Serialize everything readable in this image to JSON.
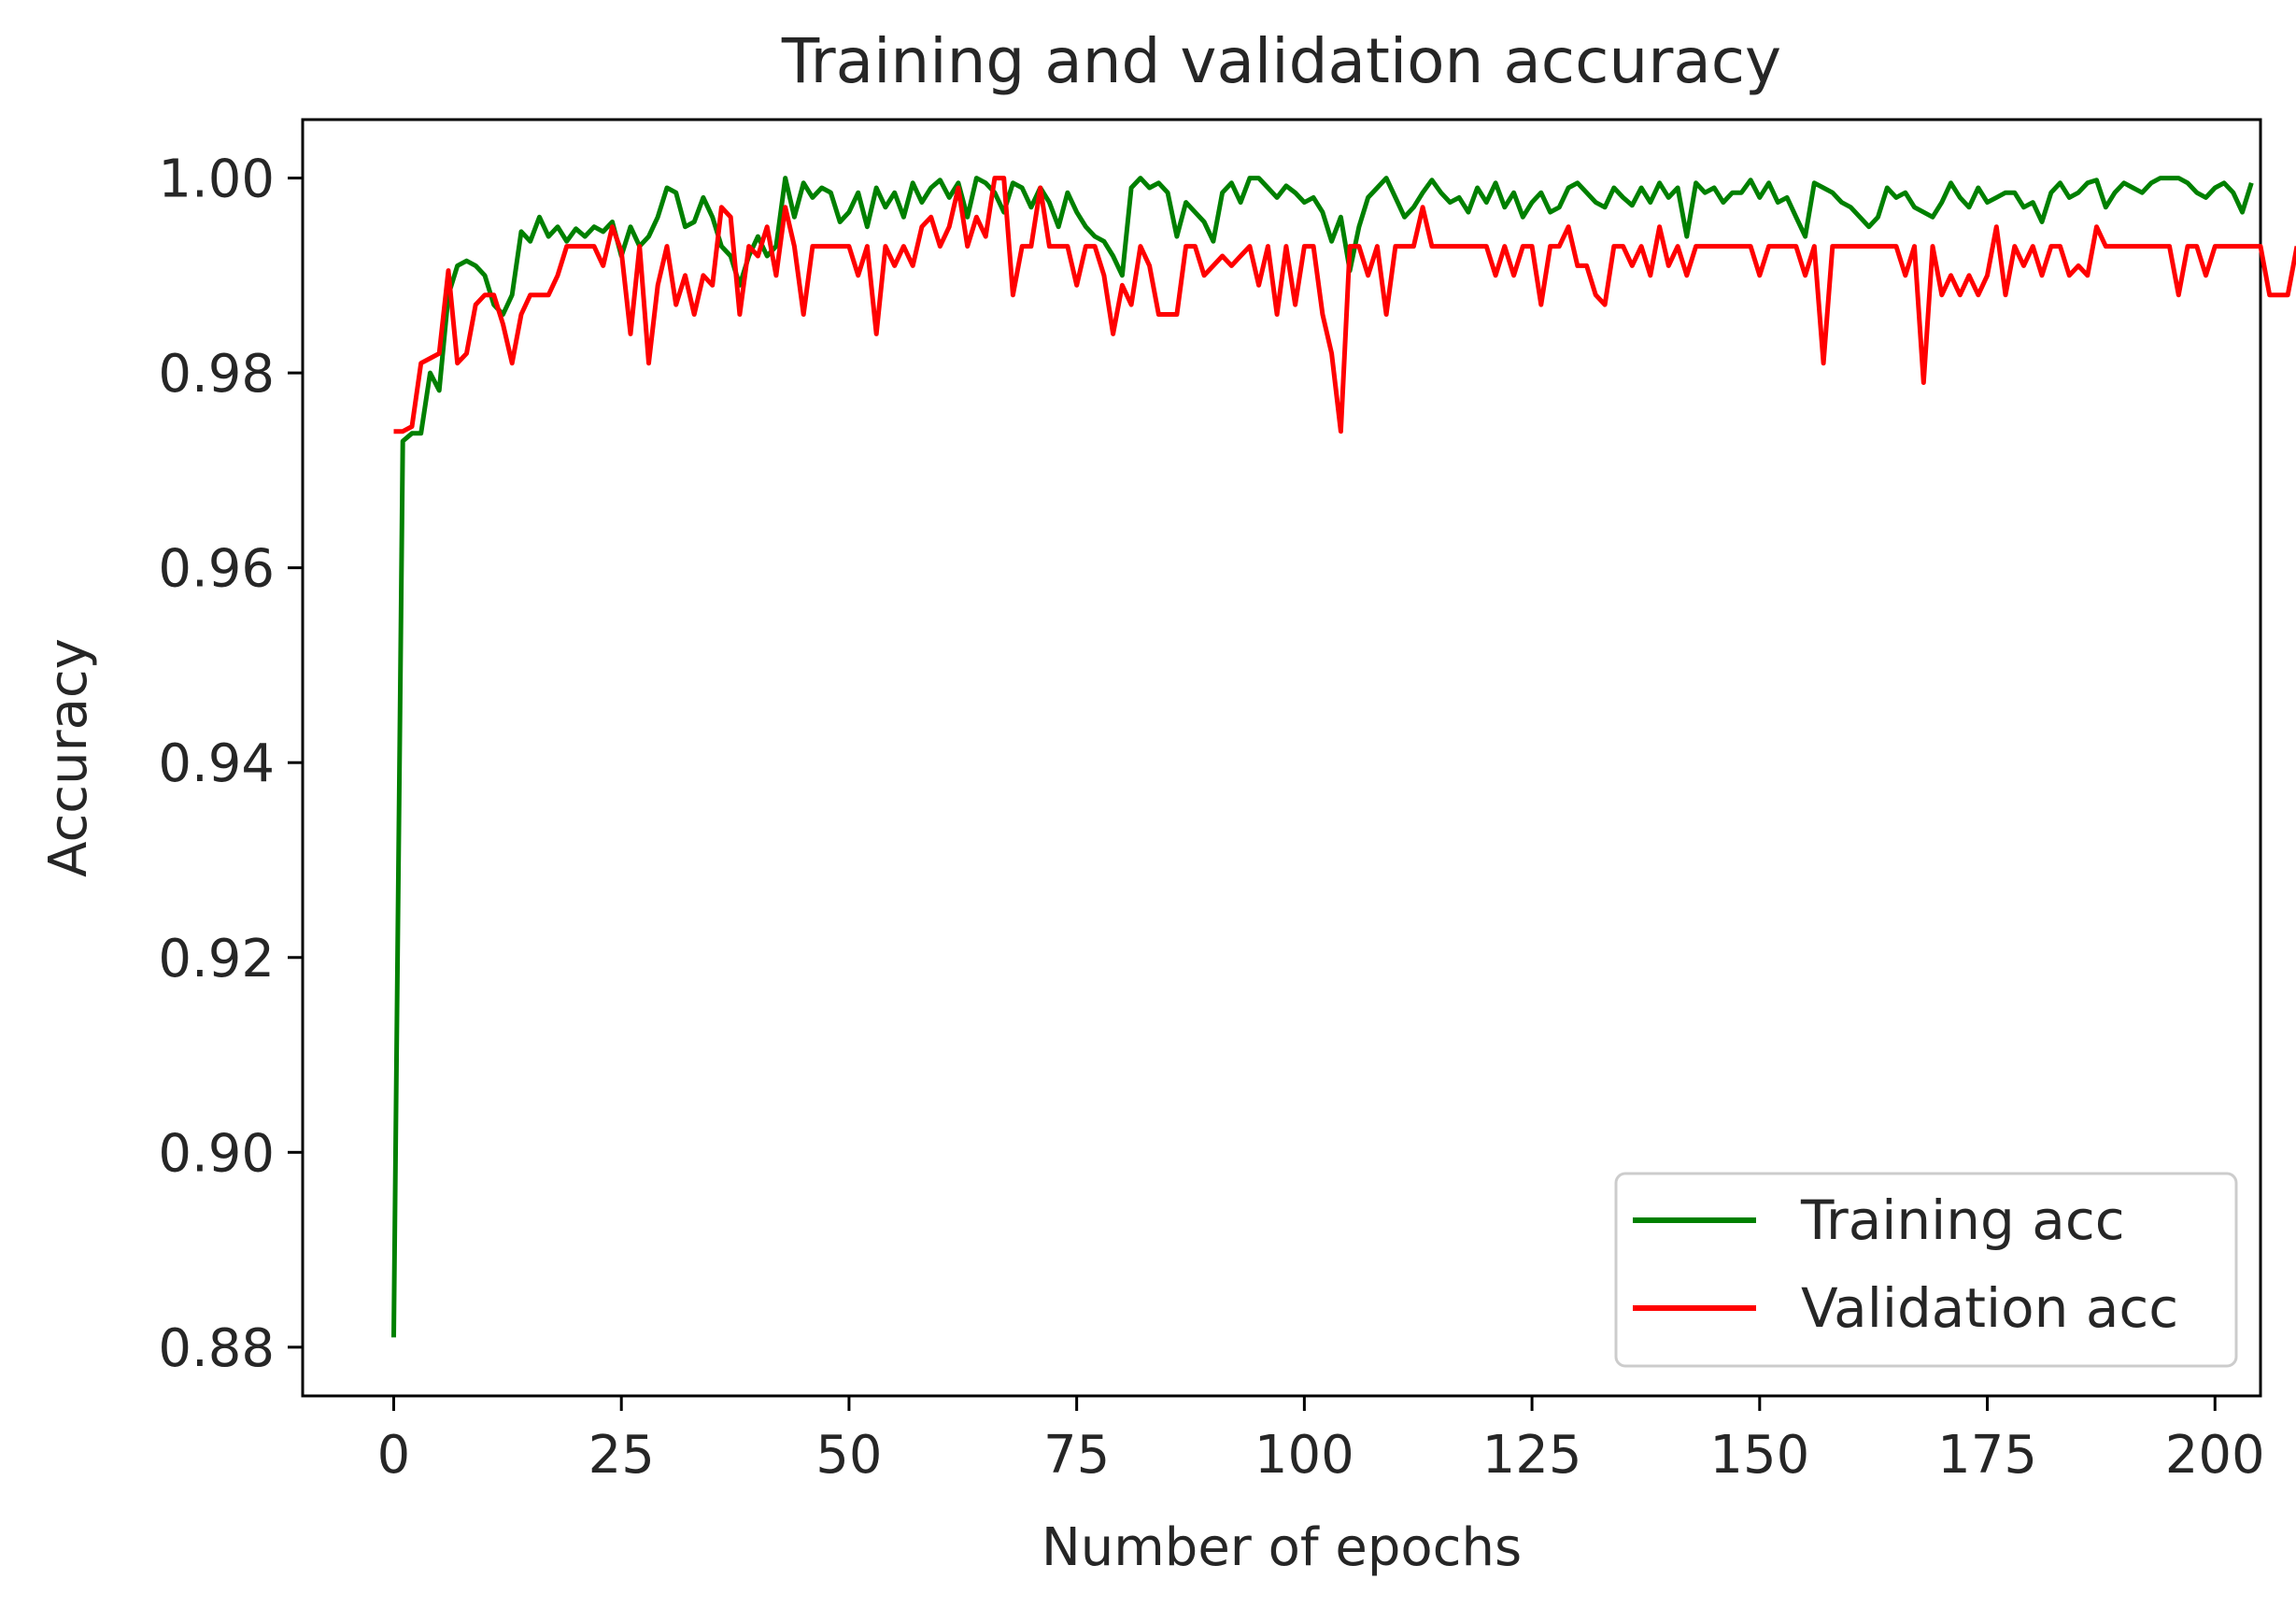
{
  "chart_data": {
    "type": "line",
    "title": "Training and validation accuracy",
    "xlabel": "Number of epochs",
    "ylabel": "Accuracy",
    "xlim": [
      -10,
      205
    ],
    "ylim": [
      0.875,
      1.006
    ],
    "xticks": [
      0,
      25,
      50,
      75,
      100,
      125,
      150,
      175,
      200
    ],
    "xtick_labels": [
      "0",
      "25",
      "50",
      "75",
      "100",
      "125",
      "150",
      "175",
      "200"
    ],
    "yticks": [
      0.88,
      0.9,
      0.92,
      0.94,
      0.96,
      0.98,
      1.0
    ],
    "ytick_labels": [
      "0.88",
      "0.90",
      "0.92",
      "0.94",
      "0.96",
      "0.98",
      "1.00"
    ],
    "grid": false,
    "legend_position": "lower-right",
    "series": [
      {
        "name": "Training acc",
        "color": "#008000",
        "values": [
          0.881,
          0.973,
          0.9738,
          0.9738,
          0.98,
          0.9782,
          0.988,
          0.991,
          0.9915,
          0.991,
          0.99,
          0.987,
          0.986,
          0.988,
          0.9945,
          0.9935,
          0.996,
          0.994,
          0.995,
          0.9935,
          0.9948,
          0.994,
          0.995,
          0.9945,
          0.9955,
          0.992,
          0.995,
          0.993,
          0.994,
          0.996,
          0.999,
          0.9985,
          0.995,
          0.9955,
          0.998,
          0.996,
          0.993,
          0.992,
          0.989,
          0.992,
          0.994,
          0.992,
          0.993,
          1.0,
          0.996,
          0.9995,
          0.998,
          0.999,
          0.9985,
          0.9955,
          0.9965,
          0.9985,
          0.995,
          0.999,
          0.997,
          0.9985,
          0.996,
          0.9995,
          0.9975,
          0.999,
          0.9998,
          0.998,
          0.9995,
          0.996,
          1.0,
          0.9995,
          0.9985,
          0.9965,
          0.9995,
          0.999,
          0.997,
          0.999,
          0.9975,
          0.995,
          0.9985,
          0.9965,
          0.995,
          0.994,
          0.9935,
          0.992,
          0.99,
          0.999,
          1.0,
          0.999,
          0.9995,
          0.9985,
          0.994,
          0.9975,
          0.9965,
          0.9955,
          0.9935,
          0.9985,
          0.9995,
          0.9975,
          1.0,
          1.0,
          0.999,
          0.998,
          0.9992,
          0.9985,
          0.9975,
          0.998,
          0.9965,
          0.9935,
          0.996,
          0.9905,
          0.995,
          0.998,
          0.999,
          1.0,
          0.998,
          0.996,
          0.997,
          0.9985,
          0.9998,
          0.9985,
          0.9975,
          0.998,
          0.9965,
          0.999,
          0.9975,
          0.9995,
          0.997,
          0.9985,
          0.996,
          0.9975,
          0.9985,
          0.9965,
          0.997,
          0.999,
          0.9995,
          0.9985,
          0.9975,
          0.997,
          0.999,
          0.998,
          0.9972,
          0.999,
          0.9975,
          0.9995,
          0.998,
          0.999,
          0.994,
          0.9995,
          0.9985,
          0.999,
          0.9975,
          0.9985,
          0.9985,
          0.9998,
          0.998,
          0.9995,
          0.9975,
          0.998,
          0.996,
          0.994,
          0.9995,
          0.999,
          0.9985,
          0.9975,
          0.997,
          0.996,
          0.995,
          0.996,
          0.999,
          0.998,
          0.9985,
          0.997,
          0.9965,
          0.996,
          0.9975,
          0.9995,
          0.998,
          0.997,
          0.999,
          0.9975,
          0.998,
          0.9985,
          0.9985,
          0.997,
          0.9975,
          0.9955,
          0.9985,
          0.9995,
          0.998,
          0.9985,
          0.9995,
          0.9998,
          0.997,
          0.9985,
          0.9995,
          0.999,
          0.9985,
          0.9995,
          1.0,
          1.0,
          1.0,
          0.9995,
          0.9985,
          0.998,
          0.999,
          0.9995,
          0.9985,
          0.9965,
          0.9995
        ]
      },
      {
        "name": "Validation acc",
        "color": "#ff0000",
        "values": [
          0.974,
          0.974,
          0.9745,
          0.981,
          0.9815,
          0.982,
          0.9905,
          0.981,
          0.982,
          0.987,
          0.988,
          0.988,
          0.985,
          0.981,
          0.986,
          0.988,
          0.988,
          0.988,
          0.99,
          0.993,
          0.993,
          0.993,
          0.993,
          0.991,
          0.995,
          0.9925,
          0.984,
          0.993,
          0.981,
          0.989,
          0.993,
          0.987,
          0.99,
          0.986,
          0.99,
          0.989,
          0.997,
          0.996,
          0.986,
          0.993,
          0.992,
          0.995,
          0.99,
          0.997,
          0.993,
          0.986,
          0.993,
          0.993,
          0.993,
          0.993,
          0.993,
          0.99,
          0.993,
          0.984,
          0.993,
          0.991,
          0.993,
          0.991,
          0.995,
          0.996,
          0.993,
          0.995,
          0.999,
          0.993,
          0.996,
          0.994,
          1.0,
          1.0,
          0.988,
          0.993,
          0.993,
          0.999,
          0.993,
          0.993,
          0.993,
          0.989,
          0.993,
          0.993,
          0.99,
          0.984,
          0.989,
          0.987,
          0.993,
          0.991,
          0.986,
          0.986,
          0.986,
          0.993,
          0.993,
          0.99,
          0.991,
          0.992,
          0.991,
          0.992,
          0.993,
          0.989,
          0.993,
          0.986,
          0.993,
          0.987,
          0.993,
          0.993,
          0.986,
          0.982,
          0.974,
          0.993,
          0.993,
          0.99,
          0.993,
          0.986,
          0.993,
          0.993,
          0.993,
          0.997,
          0.993,
          0.993,
          0.993,
          0.993,
          0.993,
          0.993,
          0.993,
          0.99,
          0.993,
          0.99,
          0.993,
          0.993,
          0.987,
          0.993,
          0.993,
          0.995,
          0.991,
          0.991,
          0.988,
          0.987,
          0.993,
          0.993,
          0.991,
          0.993,
          0.99,
          0.995,
          0.991,
          0.993,
          0.99,
          0.993,
          0.993,
          0.993,
          0.993,
          0.993,
          0.993,
          0.993,
          0.99,
          0.993,
          0.993,
          0.993,
          0.993,
          0.99,
          0.993,
          0.981,
          0.993,
          0.993,
          0.993,
          0.993,
          0.993,
          0.993,
          0.993,
          0.993,
          0.99,
          0.993,
          0.979,
          0.993,
          0.988,
          0.99,
          0.988,
          0.99,
          0.988,
          0.99,
          0.995,
          0.988,
          0.993,
          0.991,
          0.993,
          0.99,
          0.993,
          0.993,
          0.99,
          0.991,
          0.99,
          0.995,
          0.993,
          0.993,
          0.993,
          0.993,
          0.993,
          0.993,
          0.993,
          0.993,
          0.988,
          0.993,
          0.993,
          0.99,
          0.993,
          0.993,
          0.993,
          0.993,
          0.993,
          0.993,
          0.988,
          0.988,
          0.988,
          0.993
        ]
      }
    ]
  }
}
